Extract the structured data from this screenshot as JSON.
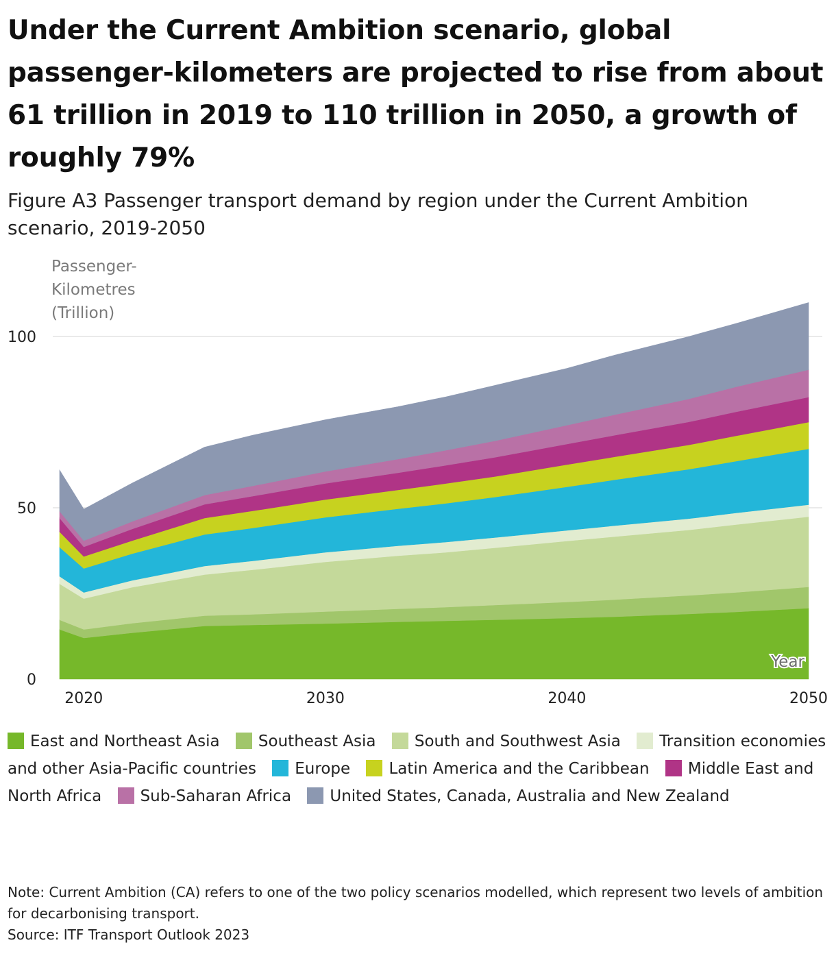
{
  "header": {
    "title": "Under the Current Ambition scenario, global passenger-kilometers are projected to rise from about 61 trillion in 2019 to 110 trillion in 2050, a growth of roughly 79%",
    "subtitle": "Figure A3 Passenger transport demand by region under the Current Ambition scenario, 2019-2050"
  },
  "footer": {
    "note": "Note: Current Ambition (CA) refers to one of the two policy scenarios modelled, which represent two levels of ambition for decarbonising transport.",
    "source": "Source: ITF Transport Outlook 2023"
  },
  "chart_data": {
    "type": "area",
    "stacked": true,
    "title": "Under the Current Ambition scenario, global passenger-kilometers are projected to rise from about 61 trillion in 2019 to 110 trillion in 2050, a growth of roughly 79%",
    "subtitle": "Figure A3 Passenger transport demand by region under the Current Ambition scenario, 2019-2050",
    "ylabel": "Passenger-Kilometres (Trillion)",
    "xlabel": "Year",
    "xlim": [
      2019,
      2050
    ],
    "ylim": [
      0,
      110
    ],
    "x_ticks": [
      2020,
      2030,
      2040,
      2050
    ],
    "y_ticks": [
      0,
      50,
      100
    ],
    "grid": "horizontal",
    "legend_position": "bottom",
    "x": [
      2019,
      2020,
      2022,
      2025,
      2027,
      2030,
      2033,
      2035,
      2037,
      2040,
      2042,
      2045,
      2047,
      2050
    ],
    "series": [
      {
        "name": "East and Northeast Asia",
        "color": "#76b82a",
        "values": [
          14.5,
          12.0,
          13.5,
          15.5,
          15.8,
          16.2,
          16.7,
          17.0,
          17.3,
          17.8,
          18.2,
          19.0,
          19.6,
          20.7
        ]
      },
      {
        "name": "Southeast Asia",
        "color": "#a1c66b",
        "values": [
          2.8,
          2.5,
          2.8,
          3.0,
          3.1,
          3.5,
          3.8,
          4.0,
          4.3,
          4.7,
          5.0,
          5.4,
          5.7,
          6.2
        ]
      },
      {
        "name": "South and Southwest Asia",
        "color": "#c4d99a",
        "values": [
          10.5,
          9.0,
          10.5,
          12.0,
          13.0,
          14.5,
          15.5,
          16.0,
          16.7,
          17.8,
          18.4,
          19.1,
          19.8,
          20.5
        ]
      },
      {
        "name": "Transition economies and other Asia-Pacific countries",
        "color": "#e2ecd0",
        "values": [
          2.2,
          1.8,
          2.0,
          2.5,
          2.6,
          2.8,
          2.9,
          3.0,
          3.0,
          3.1,
          3.2,
          3.3,
          3.4,
          3.5
        ]
      },
      {
        "name": "Europe",
        "color": "#23b6d9",
        "values": [
          8.5,
          7.0,
          7.8,
          9.2,
          9.6,
          10.2,
          10.8,
          11.3,
          11.8,
          12.7,
          13.4,
          14.4,
          15.1,
          16.3
        ]
      },
      {
        "name": "Latin America and the Caribbean",
        "color": "#c7d21f",
        "values": [
          4.5,
          3.5,
          3.8,
          4.8,
          5.0,
          5.2,
          5.5,
          5.8,
          6.0,
          6.5,
          6.7,
          7.1,
          7.4,
          7.8
        ]
      },
      {
        "name": "Middle East and North Africa",
        "color": "#b03486",
        "values": [
          4.0,
          2.8,
          3.4,
          4.0,
          4.3,
          4.7,
          5.0,
          5.3,
          5.6,
          6.0,
          6.3,
          6.7,
          7.0,
          7.3
        ]
      },
      {
        "name": "Sub-Saharan Africa",
        "color": "#b971a6",
        "values": [
          2.0,
          1.8,
          2.2,
          2.7,
          3.0,
          3.5,
          4.0,
          4.4,
          4.8,
          5.5,
          6.0,
          6.7,
          7.3,
          8.0
        ]
      },
      {
        "name": "United States, Canada, Australia and New Zealand",
        "color": "#8c98b1",
        "values": [
          12.0,
          9.2,
          11.2,
          14.0,
          14.8,
          15.1,
          15.3,
          15.6,
          16.2,
          16.6,
          17.4,
          18.2,
          18.5,
          19.6
        ]
      }
    ]
  }
}
